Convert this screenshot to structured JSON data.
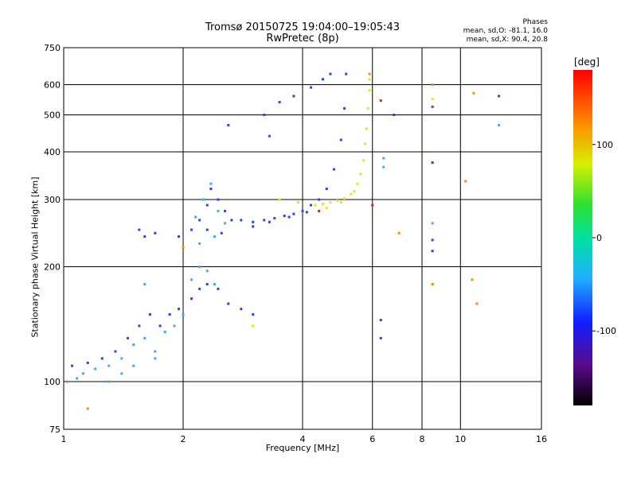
{
  "chart_data": {
    "type": "scatter",
    "title": "Tromsø 20150725 19:04:00–19:05:43",
    "subtitle": "RwPretec (8p)",
    "xlabel": "Frequency [MHz]",
    "ylabel": "Stationary phase Virtual Height [km]",
    "x_scale": "log",
    "y_scale": "log",
    "xlim": [
      1,
      16
    ],
    "ylim": [
      75,
      750
    ],
    "x_ticks": [
      1,
      2,
      4,
      6,
      8,
      10,
      16
    ],
    "y_ticks": [
      75,
      100,
      200,
      300,
      400,
      500,
      600,
      750
    ],
    "grid": true,
    "stats_header": "Phases",
    "stats_O": "mean, sd,O: -81.1, 16.0",
    "stats_X": "mean, sd,X:  90.4, 20.8",
    "colorbar": {
      "label": "[deg]",
      "range": [
        -180,
        180
      ],
      "ticks": [
        100,
        0,
        -100
      ]
    },
    "series": [
      {
        "color": "#2a40ff",
        "points": [
          [
            1.05,
            110
          ],
          [
            1.15,
            112
          ],
          [
            1.25,
            115
          ],
          [
            1.35,
            120
          ],
          [
            1.45,
            130
          ],
          [
            1.55,
            140
          ],
          [
            1.65,
            150
          ],
          [
            1.75,
            140
          ],
          [
            1.85,
            150
          ],
          [
            1.95,
            155
          ],
          [
            2.1,
            165
          ],
          [
            2.2,
            175
          ],
          [
            2.3,
            180
          ],
          [
            2.45,
            175
          ],
          [
            2.6,
            160
          ],
          [
            2.8,
            155
          ],
          [
            3.0,
            150
          ],
          [
            2.1,
            250
          ],
          [
            2.2,
            265
          ],
          [
            2.3,
            290
          ],
          [
            2.35,
            320
          ],
          [
            2.45,
            300
          ],
          [
            2.55,
            280
          ],
          [
            2.65,
            265
          ],
          [
            2.8,
            265
          ],
          [
            3.0,
            262
          ],
          [
            3.2,
            265
          ],
          [
            3.4,
            268
          ],
          [
            3.6,
            272
          ],
          [
            3.8,
            275
          ],
          [
            4.0,
            280
          ],
          [
            4.2,
            290
          ],
          [
            4.4,
            300
          ],
          [
            4.6,
            320
          ],
          [
            4.8,
            360
          ],
          [
            5.0,
            430
          ],
          [
            5.1,
            520
          ],
          [
            5.15,
            640
          ],
          [
            3.2,
            500
          ],
          [
            3.5,
            540
          ],
          [
            3.8,
            560
          ],
          [
            4.2,
            590
          ],
          [
            4.5,
            620
          ],
          [
            4.7,
            640
          ],
          [
            2.6,
            470
          ],
          [
            3.3,
            440
          ],
          [
            2.3,
            250
          ],
          [
            2.5,
            245
          ],
          [
            1.6,
            240
          ],
          [
            1.7,
            245
          ],
          [
            1.95,
            240
          ],
          [
            1.55,
            250
          ],
          [
            6.3,
            130
          ],
          [
            6.3,
            145
          ],
          [
            6.8,
            500
          ],
          [
            8.5,
            375
          ],
          [
            8.5,
            220
          ],
          [
            8.5,
            235
          ],
          [
            12.5,
            560
          ],
          [
            3.0,
            255
          ],
          [
            3.3,
            262
          ],
          [
            3.7,
            270
          ],
          [
            4.1,
            278
          ]
        ]
      },
      {
        "color": "#4aa8f0",
        "points": [
          [
            1.02,
            100
          ],
          [
            1.08,
            102
          ],
          [
            1.12,
            105
          ],
          [
            1.2,
            108
          ],
          [
            1.3,
            110
          ],
          [
            1.4,
            115
          ],
          [
            1.5,
            125
          ],
          [
            1.6,
            130
          ],
          [
            1.7,
            120
          ],
          [
            1.8,
            135
          ],
          [
            1.9,
            140
          ],
          [
            2.0,
            150
          ],
          [
            2.1,
            185
          ],
          [
            2.2,
            200
          ],
          [
            2.3,
            195
          ],
          [
            2.4,
            180
          ],
          [
            2.15,
            270
          ],
          [
            2.25,
            300
          ],
          [
            2.35,
            330
          ],
          [
            2.45,
            280
          ],
          [
            2.55,
            260
          ],
          [
            2.2,
            230
          ],
          [
            2.4,
            240
          ],
          [
            1.6,
            180
          ],
          [
            1.5,
            110
          ],
          [
            1.4,
            105
          ],
          [
            1.3,
            100
          ],
          [
            1.7,
            115
          ],
          [
            8.5,
            260
          ],
          [
            6.4,
            365
          ],
          [
            6.4,
            385
          ],
          [
            12.5,
            470
          ]
        ]
      },
      {
        "color": "#e8e800",
        "points": [
          [
            4.3,
            290
          ],
          [
            4.5,
            292
          ],
          [
            4.7,
            295
          ],
          [
            4.9,
            298
          ],
          [
            5.1,
            302
          ],
          [
            5.3,
            310
          ],
          [
            5.5,
            330
          ],
          [
            5.6,
            350
          ],
          [
            5.7,
            380
          ],
          [
            5.75,
            420
          ],
          [
            5.8,
            460
          ],
          [
            5.85,
            520
          ],
          [
            5.9,
            580
          ],
          [
            5.9,
            620
          ],
          [
            4.6,
            285
          ],
          [
            5.0,
            295
          ],
          [
            5.4,
            315
          ],
          [
            3.5,
            300
          ],
          [
            3.9,
            295
          ],
          [
            3.0,
            140
          ],
          [
            8.5,
            550
          ]
        ]
      },
      {
        "color": "#ff8c00",
        "points": [
          [
            1.15,
            85
          ],
          [
            2.0,
            225
          ],
          [
            8.5,
            180
          ],
          [
            8.5,
            600
          ],
          [
            10.3,
            335
          ],
          [
            10.7,
            185
          ],
          [
            11.0,
            160
          ],
          [
            10.8,
            570
          ],
          [
            5.9,
            640
          ],
          [
            7.0,
            245
          ]
        ]
      },
      {
        "color": "#e02020",
        "points": [
          [
            6.0,
            290
          ],
          [
            6.3,
            545
          ],
          [
            8.5,
            525
          ],
          [
            4.4,
            280
          ]
        ]
      }
    ]
  }
}
